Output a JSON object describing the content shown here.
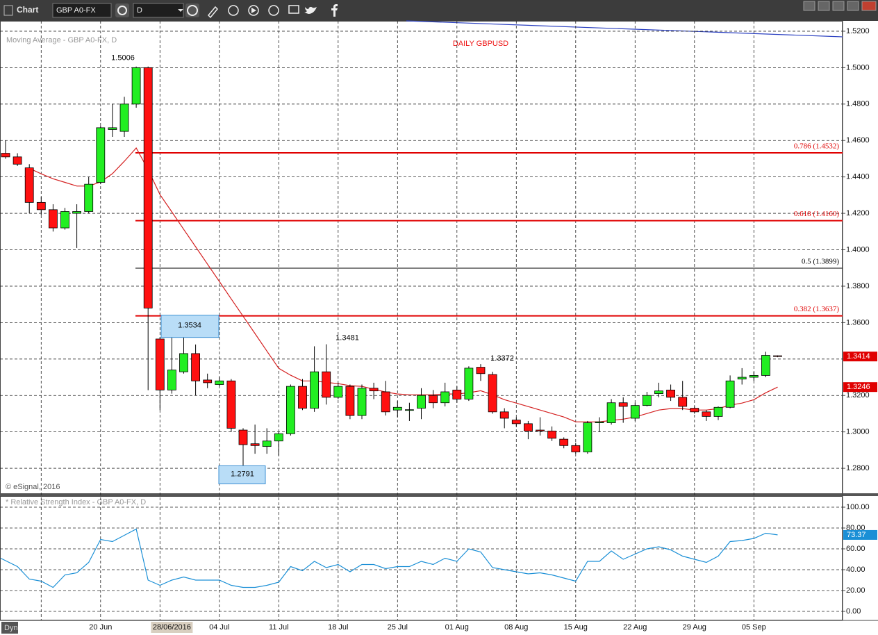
{
  "toolbar": {
    "title": "Chart",
    "symbol": "GBP A0-FX",
    "interval": "D"
  },
  "copyright": "© eSignal, 2016",
  "footer": "Dyn",
  "chart_data": [
    {
      "type": "candlestick",
      "title": "DAILY GBPUSD",
      "categories": [
        null,
        null,
        null,
        null,
        null,
        null,
        null,
        null,
        "20 Jun",
        null,
        null,
        null,
        null,
        null,
        "28/06/2016",
        null,
        null,
        null,
        "04 Jul",
        null,
        null,
        null,
        null,
        "11 Jul",
        null,
        null,
        null,
        null,
        "18 Jul",
        null,
        null,
        null,
        null,
        "25 Jul",
        null,
        null,
        null,
        null,
        "01 Aug",
        null,
        null,
        null,
        null,
        "08 Aug",
        null,
        null,
        null,
        null,
        "15 Aug",
        null,
        null,
        null,
        null,
        "22 Aug",
        null,
        null,
        null,
        null,
        "29 Aug",
        null,
        null,
        null,
        null,
        "05 Sep",
        null,
        null
      ],
      "open": [
        1.453,
        1.451,
        1.445,
        1.426,
        1.422,
        1.412,
        1.42,
        1.421,
        1.437,
        1.466,
        1.465,
        1.48,
        1.5,
        1.351,
        1.323,
        1.333,
        1.343,
        1.3285,
        1.326,
        1.328,
        1.301,
        1.2935,
        1.292,
        1.295,
        1.299,
        1.325,
        1.313,
        1.333,
        1.319,
        1.325,
        1.309,
        1.324,
        1.322,
        1.312,
        1.3118,
        1.313,
        1.32,
        1.316,
        1.323,
        1.318,
        1.3355,
        1.3315,
        1.311,
        1.3065,
        1.3045,
        1.301,
        1.3005,
        1.296,
        1.2925,
        1.289,
        1.305,
        1.305,
        1.316,
        1.3075,
        1.3145,
        1.321,
        1.323,
        1.319,
        1.313,
        1.311,
        1.3085,
        1.3135,
        1.329,
        1.33,
        1.331,
        1.3418
      ],
      "high": [
        1.46,
        1.453,
        1.447,
        1.429,
        1.425,
        1.423,
        1.425,
        1.44,
        1.468,
        1.48,
        1.484,
        1.5006,
        1.5006,
        1.352,
        1.352,
        1.3534,
        1.348,
        1.332,
        1.33,
        1.329,
        1.302,
        1.304,
        1.302,
        1.3,
        1.326,
        1.329,
        1.347,
        1.3481,
        1.327,
        1.326,
        1.326,
        1.327,
        1.328,
        1.317,
        1.316,
        1.324,
        1.323,
        1.327,
        1.325,
        1.336,
        1.3372,
        1.333,
        1.313,
        1.308,
        1.306,
        1.308,
        1.303,
        1.297,
        1.294,
        1.306,
        1.308,
        1.318,
        1.319,
        1.316,
        1.322,
        1.327,
        1.326,
        1.328,
        1.314,
        1.312,
        1.314,
        1.331,
        1.335,
        1.333,
        1.344,
        1.342
      ],
      "low": [
        1.45,
        1.446,
        1.42,
        1.419,
        1.41,
        1.411,
        1.401,
        1.42,
        1.436,
        1.462,
        1.462,
        1.478,
        1.3229,
        1.312,
        1.321,
        1.332,
        1.32,
        1.324,
        1.325,
        1.3,
        1.2791,
        1.288,
        1.288,
        1.287,
        1.298,
        1.312,
        1.311,
        1.315,
        1.318,
        1.307,
        1.307,
        1.318,
        1.309,
        1.308,
        1.306,
        1.307,
        1.313,
        1.314,
        1.316,
        1.317,
        1.328,
        1.31,
        1.302,
        1.303,
        1.296,
        1.298,
        1.295,
        1.291,
        1.288,
        1.288,
        1.3,
        1.304,
        1.305,
        1.306,
        1.314,
        1.319,
        1.317,
        1.312,
        1.31,
        1.306,
        1.3065,
        1.313,
        1.326,
        1.328,
        1.33,
        1.341
      ],
      "close": [
        1.451,
        1.447,
        1.426,
        1.422,
        1.412,
        1.421,
        1.421,
        1.436,
        1.467,
        1.467,
        1.48,
        1.5,
        1.368,
        1.323,
        1.334,
        1.343,
        1.328,
        1.327,
        1.328,
        1.302,
        1.293,
        1.2925,
        1.295,
        1.299,
        1.325,
        1.313,
        1.333,
        1.319,
        1.325,
        1.309,
        1.324,
        1.3225,
        1.311,
        1.3135,
        1.3122,
        1.32,
        1.316,
        1.322,
        1.318,
        1.335,
        1.332,
        1.311,
        1.3075,
        1.3045,
        1.3005,
        1.3005,
        1.2965,
        1.2925,
        1.289,
        1.305,
        1.3055,
        1.316,
        1.314,
        1.3145,
        1.32,
        1.3225,
        1.319,
        1.314,
        1.311,
        1.3085,
        1.3135,
        1.328,
        1.33,
        1.331,
        1.342,
        1.3414
      ],
      "up_color": "#22ee22",
      "down_color": "#ff1010",
      "ylim": [
        1.2663,
        1.5257
      ],
      "yticks": [
        {
          "value": 1.28,
          "label": "1.2800"
        },
        {
          "value": 1.3,
          "label": "1.3000"
        },
        {
          "value": 1.32,
          "label": "1.3200"
        },
        {
          "value": 1.34,
          "label": "1.3400"
        },
        {
          "value": 1.36,
          "label": "1.3600"
        },
        {
          "value": 1.38,
          "label": "1.3800"
        },
        {
          "value": 1.4,
          "label": "1.4000"
        },
        {
          "value": 1.42,
          "label": "1.4200"
        },
        {
          "value": 1.44,
          "label": "1.4400"
        },
        {
          "value": 1.46,
          "label": "1.4600"
        },
        {
          "value": 1.48,
          "label": "1.4800"
        },
        {
          "value": 1.5,
          "label": "1.5000"
        },
        {
          "value": 1.52,
          "label": "1.5200"
        }
      ],
      "grid": true,
      "moving_average": {
        "name": "Moving Average - GBP A0-FX, D",
        "color": "#d42020",
        "values": [
          null,
          null,
          1.4447,
          1.4417,
          1.439,
          1.437,
          1.435,
          1.435,
          1.4372,
          1.4418,
          1.4486,
          1.4559,
          1.444,
          1.4303,
          1.4208,
          1.4112,
          1.4017,
          1.3921,
          1.3826,
          1.373,
          1.3635,
          1.354,
          1.3444,
          1.3349,
          1.3311,
          1.328,
          1.328,
          1.3272,
          1.3265,
          1.3254,
          1.325,
          1.3234,
          1.3219,
          1.3208,
          1.3204,
          1.3204,
          1.3204,
          1.3208,
          1.3208,
          1.3215,
          1.3226,
          1.3204,
          1.3177,
          1.3158,
          1.3139,
          1.312,
          1.3101,
          1.3082,
          1.3055,
          1.3055,
          1.3055,
          1.3063,
          1.307,
          1.3082,
          1.3101,
          1.312,
          1.3128,
          1.3128,
          1.312,
          1.312,
          1.3128,
          1.3147,
          1.3158,
          1.3177,
          1.3215,
          1.3246
        ]
      },
      "fib_levels": [
        {
          "label": "0.786 (1.4532)",
          "value": 1.4532,
          "color": "#e00000"
        },
        {
          "label": "0.618 (1.4160)",
          "value": 1.416,
          "color": "#e00000"
        },
        {
          "label": "0.5 (1.3899)",
          "value": 1.3899,
          "color": "#000000"
        },
        {
          "label": "0.382 (1.3637)",
          "value": 1.3637,
          "color": "#e00000"
        }
      ],
      "annotations": [
        {
          "label": "1.5006",
          "value": 1.5006
        },
        {
          "label": "1.3481",
          "value": 1.3481
        },
        {
          "label": "1.3372",
          "value": 1.3372
        },
        {
          "label": "1.3534",
          "value": 1.3534
        },
        {
          "label": "1.2791",
          "value": 1.2791
        }
      ],
      "last_tags": [
        {
          "value": 1.3414,
          "label": "1.3414",
          "color": "#e00000"
        },
        {
          "value": 1.3246,
          "label": "1.3246",
          "color": "#e00000"
        }
      ]
    },
    {
      "type": "line",
      "title": "* Relative Strength Index - GBP A0-FX, D",
      "color": "#1a8fd6",
      "values": [
        51,
        43,
        31,
        29,
        23,
        35,
        37,
        47,
        69,
        67,
        73,
        79,
        30,
        25,
        30,
        33,
        30,
        30,
        30,
        25,
        23,
        23,
        25,
        28,
        43,
        39,
        48,
        42,
        45,
        38,
        45,
        45,
        41,
        43,
        43,
        48,
        45,
        51,
        48,
        60,
        57,
        42,
        40,
        38,
        36,
        37,
        35,
        32,
        29,
        48,
        48,
        58,
        50,
        55,
        60,
        62,
        59,
        53,
        50,
        47,
        53,
        67,
        68,
        70,
        75,
        73.37
      ],
      "ylim": [
        -8.67,
        110
      ],
      "yticks": [
        {
          "value": 0,
          "label": "0.00"
        },
        {
          "value": 20,
          "label": "20.00"
        },
        {
          "value": 40,
          "label": "40.00"
        },
        {
          "value": 60,
          "label": "60.00"
        },
        {
          "value": 80,
          "label": "80.00"
        },
        {
          "value": 100,
          "label": "100.00"
        }
      ],
      "grid": true,
      "last_tag": {
        "value": 73.37,
        "label": "73.37",
        "color": "#1a8fd6"
      }
    }
  ]
}
